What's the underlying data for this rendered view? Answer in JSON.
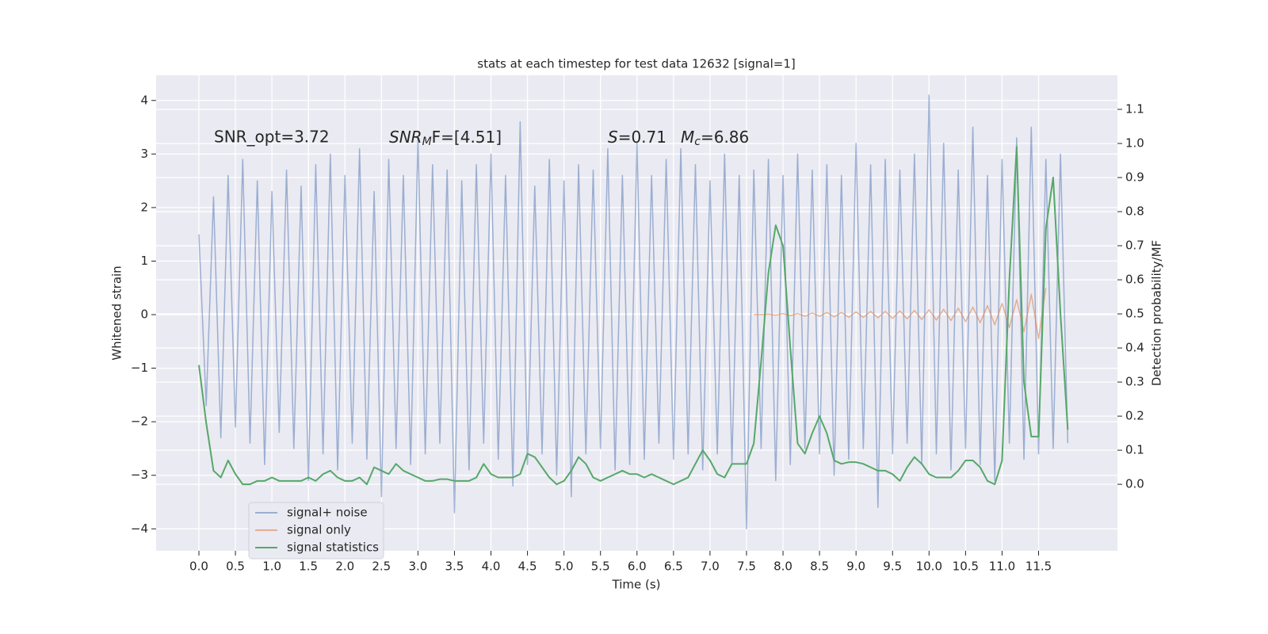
{
  "chart_data": {
    "type": "line",
    "title": "stats at each timestep for test data 12632 [signal=1]",
    "xlabel": "Time (s)",
    "ylabel": "Whitened strain",
    "y2label": "Detection probability/MF",
    "annotations": [
      {
        "text": "SNR_opt=3.72"
      },
      {
        "base": "SNR",
        "sub": "M",
        "rest": "F=[4.51]"
      },
      {
        "base": "S",
        "rest": "=0.71"
      },
      {
        "base": "M",
        "sub": "c",
        "rest": "=6.86"
      }
    ],
    "xlim": [
      -0.586,
      12.58
    ],
    "ylim": [
      -4.41,
      4.47
    ],
    "y2lim": [
      -0.195,
      1.2
    ],
    "xticks": [
      {
        "value": 0,
        "label": "0.0"
      },
      0.5,
      {
        "value": 1,
        "label": "1.0"
      },
      1.5,
      {
        "value": 2,
        "label": "2.0"
      },
      2.5,
      {
        "value": 3,
        "label": "3.0"
      },
      3.5,
      {
        "value": 4,
        "label": "4.0"
      },
      4.5,
      {
        "value": 5,
        "label": "5.0"
      },
      5.5,
      {
        "value": 6,
        "label": "6.0"
      },
      6.5,
      {
        "value": 7,
        "label": "7.0"
      },
      7.5,
      {
        "value": 8,
        "label": "8.0"
      },
      8.5,
      {
        "value": 9,
        "label": "9.0"
      },
      9.5,
      {
        "value": 10,
        "label": "10.0"
      },
      10.5,
      {
        "value": 11,
        "label": "11.0"
      },
      11.5
    ],
    "yticks": [
      {
        "value": -4,
        "label": "−4"
      },
      {
        "value": -3,
        "label": "−3"
      },
      {
        "value": -2,
        "label": "−2"
      },
      {
        "value": -1,
        "label": "−1"
      },
      0,
      1,
      2,
      3,
      4
    ],
    "y2ticks": [
      {
        "value": 0,
        "label": "0.0"
      },
      0.1,
      0.2,
      0.3,
      0.4,
      0.5,
      0.6,
      0.7,
      0.8,
      0.9,
      {
        "value": 1,
        "label": "1.0"
      },
      1.1
    ],
    "grid": true,
    "legend": "lower left",
    "x": [
      0.0,
      0.1,
      0.2,
      0.3,
      0.4,
      0.5,
      0.6,
      0.7,
      0.8,
      0.9,
      1.0,
      1.1,
      1.2,
      1.3,
      1.4,
      1.5,
      1.6,
      1.7,
      1.8,
      1.9,
      2.0,
      2.1,
      2.2,
      2.3,
      2.4,
      2.5,
      2.6,
      2.7,
      2.8,
      2.9,
      3.0,
      3.1,
      3.2,
      3.3,
      3.4,
      3.5,
      3.6,
      3.7,
      3.8,
      3.9,
      4.0,
      4.1,
      4.2,
      4.3,
      4.4,
      4.5,
      4.6,
      4.7,
      4.8,
      4.9,
      5.0,
      5.1,
      5.2,
      5.3,
      5.4,
      5.5,
      5.6,
      5.7,
      5.8,
      5.9,
      6.0,
      6.1,
      6.2,
      6.3,
      6.4,
      6.5,
      6.6,
      6.7,
      6.8,
      6.9,
      7.0,
      7.1,
      7.2,
      7.3,
      7.4,
      7.5,
      7.6,
      7.7,
      7.8,
      7.9,
      8.0,
      8.1,
      8.2,
      8.3,
      8.4,
      8.5,
      8.6,
      8.7,
      8.8,
      8.9,
      9.0,
      9.1,
      9.2,
      9.3,
      9.4,
      9.5,
      9.6,
      9.7,
      9.8,
      9.9,
      10.0,
      10.1,
      10.2,
      10.3,
      10.4,
      10.5,
      10.6,
      10.7,
      10.8,
      10.9,
      11.0,
      11.1,
      11.2,
      11.3,
      11.4,
      11.5,
      11.6,
      11.7,
      11.8,
      11.9
    ],
    "series": [
      {
        "name": "signal+ noise",
        "color": "#4c72b0",
        "alpha": 0.5,
        "values": [
          1.5,
          -1.7,
          2.2,
          -2.3,
          2.6,
          -2.1,
          2.9,
          -2.4,
          2.5,
          -2.8,
          2.3,
          -2.2,
          2.7,
          -2.5,
          2.4,
          -3.1,
          2.8,
          -2.6,
          3.0,
          -2.9,
          2.6,
          -2.4,
          3.1,
          -2.7,
          2.3,
          -3.4,
          2.9,
          -2.5,
          2.6,
          -2.8,
          3.3,
          -2.6,
          2.8,
          -2.4,
          2.7,
          -3.7,
          2.5,
          -2.9,
          2.8,
          -2.4,
          3.0,
          -2.7,
          2.6,
          -3.2,
          3.6,
          -2.8,
          2.4,
          -2.6,
          2.9,
          -3.0,
          2.5,
          -3.4,
          2.8,
          -2.6,
          2.7,
          -2.5,
          3.1,
          -2.9,
          2.6,
          -2.8,
          3.2,
          -2.7,
          2.6,
          -2.4,
          2.9,
          -2.7,
          3.1,
          -2.6,
          2.8,
          -2.9,
          2.5,
          -2.6,
          3.0,
          -2.8,
          2.6,
          -4.0,
          2.7,
          -2.5,
          2.9,
          -3.1,
          2.6,
          -2.8,
          3.0,
          -2.5,
          2.7,
          -2.6,
          2.8,
          -3.0,
          2.6,
          -2.7,
          3.2,
          -2.5,
          2.8,
          -3.6,
          2.9,
          -2.6,
          2.7,
          -2.4,
          3.0,
          -2.8,
          4.1,
          -2.6,
          3.2,
          -2.9,
          2.7,
          -2.5,
          3.5,
          -2.8,
          2.6,
          -3.1,
          2.9,
          -2.4,
          3.3,
          -2.7,
          3.5,
          -2.6,
          2.9,
          -2.5,
          3.0,
          -2.4
        ]
      },
      {
        "name": "signal only",
        "color": "#dd8452",
        "alpha": 0.6,
        "values": [
          null,
          null,
          null,
          null,
          null,
          null,
          null,
          null,
          null,
          null,
          null,
          null,
          null,
          null,
          null,
          null,
          null,
          null,
          null,
          null,
          null,
          null,
          null,
          null,
          null,
          null,
          null,
          null,
          null,
          null,
          null,
          null,
          null,
          null,
          null,
          null,
          null,
          null,
          null,
          null,
          null,
          null,
          null,
          null,
          null,
          null,
          null,
          null,
          null,
          null,
          null,
          null,
          null,
          null,
          null,
          null,
          null,
          null,
          null,
          null,
          null,
          null,
          null,
          null,
          null,
          null,
          null,
          null,
          null,
          null,
          null,
          null,
          null,
          null,
          null,
          null,
          0,
          0,
          0.01,
          -0.01,
          0.02,
          -0.02,
          0.02,
          -0.03,
          0.03,
          -0.03,
          0.04,
          -0.04,
          0.04,
          -0.05,
          0.05,
          -0.05,
          0.06,
          -0.06,
          0.06,
          -0.07,
          0.07,
          -0.08,
          0.08,
          -0.09,
          0.09,
          -0.1,
          0.1,
          -0.11,
          0.12,
          -0.13,
          0.14,
          -0.15,
          0.17,
          -0.19,
          0.21,
          -0.24,
          0.28,
          -0.32,
          0.38,
          -0.45,
          0.5,
          null,
          null,
          null
        ]
      },
      {
        "name": "signal statistics",
        "color": "#55a868",
        "alpha": 1,
        "axis": "y2",
        "values": [
          0.35,
          0.18,
          0.04,
          0.02,
          0.07,
          0.03,
          0,
          0,
          0.01,
          0.01,
          0.02,
          0.01,
          0.01,
          0.01,
          0.01,
          0.02,
          0.01,
          0.03,
          0.04,
          0.02,
          0.01,
          0.01,
          0.02,
          0,
          0.05,
          0.04,
          0.03,
          0.06,
          0.04,
          0.03,
          0.02,
          0.01,
          0.01,
          0.015,
          0.015,
          0.01,
          0.01,
          0.01,
          0.02,
          0.06,
          0.03,
          0.02,
          0.02,
          0.02,
          0.03,
          0.09,
          0.08,
          0.05,
          0.02,
          0,
          0.01,
          0.04,
          0.08,
          0.06,
          0.02,
          0.01,
          0.02,
          0.03,
          0.04,
          0.03,
          0.03,
          0.02,
          0.03,
          0.02,
          0.01,
          0,
          0.01,
          0.02,
          0.06,
          0.1,
          0.07,
          0.03,
          0.02,
          0.06,
          0.06,
          0.06,
          0.12,
          0.36,
          0.62,
          0.76,
          0.7,
          0.4,
          0.12,
          0.09,
          0.15,
          0.2,
          0.15,
          0.07,
          0.06,
          0.065,
          0.065,
          0.06,
          0.05,
          0.04,
          0.04,
          0.03,
          0.01,
          0.05,
          0.08,
          0.06,
          0.03,
          0.02,
          0.02,
          0.02,
          0.04,
          0.07,
          0.07,
          0.05,
          0.01,
          0,
          0.07,
          0.6,
          0.99,
          0.3,
          0.14,
          0.14,
          0.75,
          0.9,
          0.5,
          0.16
        ]
      }
    ]
  }
}
